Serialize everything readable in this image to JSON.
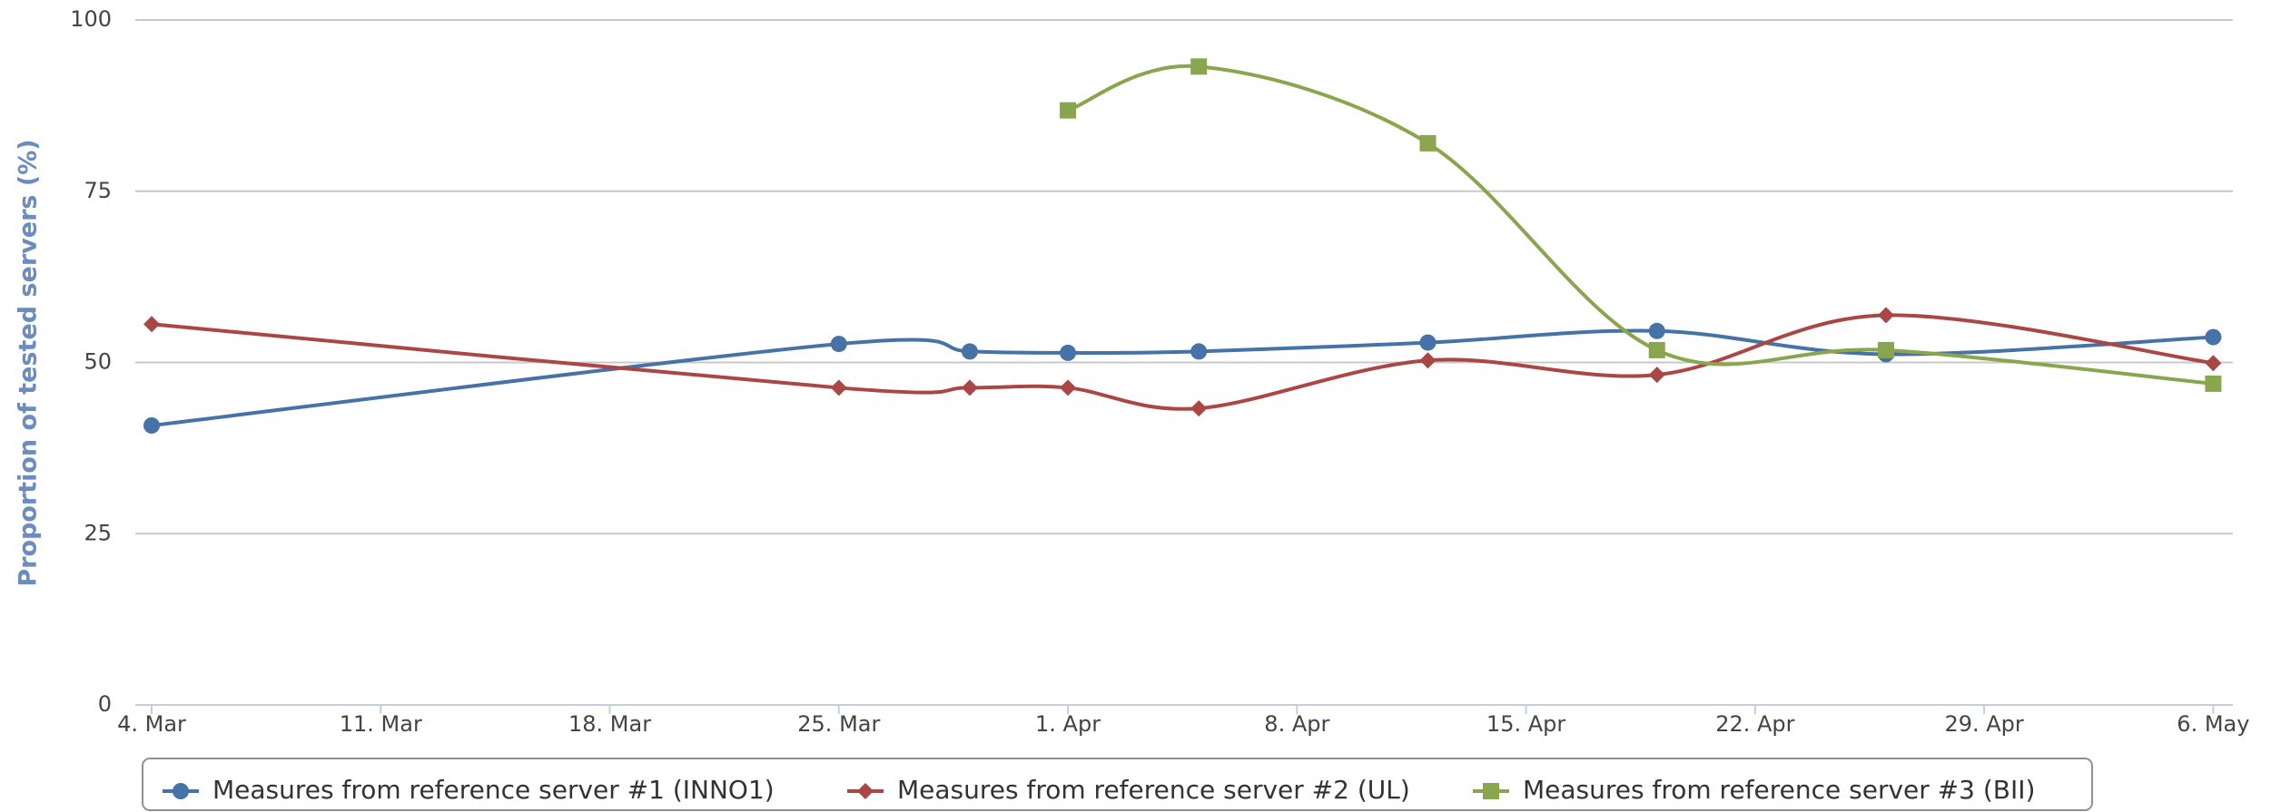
{
  "chart_data": {
    "type": "line",
    "y_label": "Proportion of tested servers (%)",
    "x": [
      0,
      21,
      25,
      28,
      32,
      39,
      46,
      53,
      63
    ],
    "xlim": [
      -0.5,
      63.6
    ],
    "xticks": [
      {
        "value": 0,
        "label": "4. Mar"
      },
      {
        "value": 7,
        "label": "11. Mar"
      },
      {
        "value": 14,
        "label": "18. Mar"
      },
      {
        "value": 21,
        "label": "25. Mar"
      },
      {
        "value": 28,
        "label": "1. Apr"
      },
      {
        "value": 35,
        "label": "8. Apr"
      },
      {
        "value": 42,
        "label": "15. Apr"
      },
      {
        "value": 49,
        "label": "22. Apr"
      },
      {
        "value": 56,
        "label": "29. Apr"
      },
      {
        "value": 63,
        "label": "6. May"
      }
    ],
    "ylim": [
      0,
      100
    ],
    "yticks": [
      0,
      25,
      50,
      75,
      100
    ],
    "grid": true,
    "legend": "bottom",
    "series": [
      {
        "name": "Measures from reference server #1 (INNO1)",
        "color": "#4572a7",
        "marker": "circle",
        "values": [
          40.8,
          52.7,
          51.6,
          51.4,
          51.6,
          52.9,
          54.6,
          51.2,
          53.7
        ]
      },
      {
        "name": "Measures from reference server #2 (UL)",
        "color": "#aa4643",
        "marker": "diamond",
        "values": [
          55.6,
          46.3,
          46.3,
          46.3,
          43.3,
          50.3,
          48.2,
          56.9,
          49.9
        ]
      },
      {
        "name": "Measures from reference server #3 (BII)",
        "color": "#89a54e",
        "marker": "square",
        "values": [
          null,
          null,
          null,
          86.8,
          93.2,
          82.0,
          51.8,
          51.8,
          46.9
        ]
      }
    ]
  }
}
